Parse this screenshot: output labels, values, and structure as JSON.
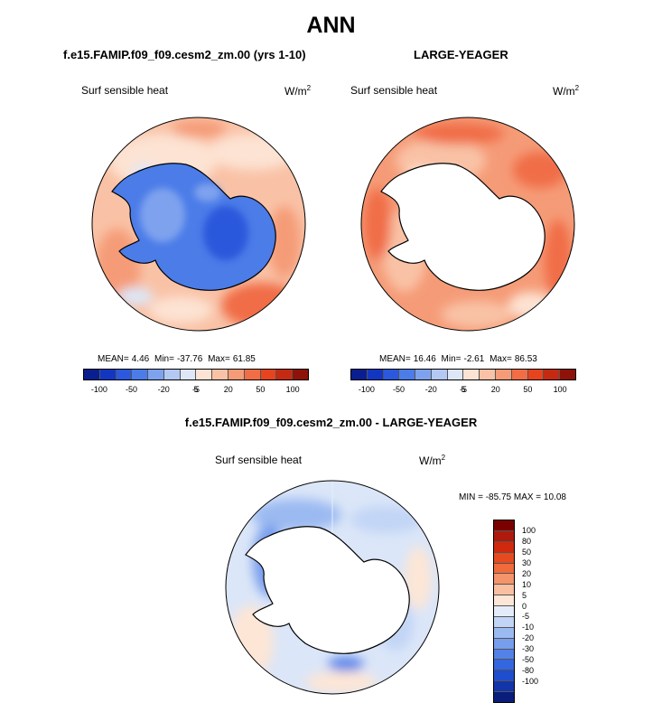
{
  "title": "ANN",
  "panels": [
    {
      "case": "f.e15.FAMIP.f09_f09.cesm2_zm.00 (yrs 1-10)",
      "variable": "Surf sensible heat",
      "units": "W/m",
      "units_exp": "2",
      "stats": {
        "mean_label": "MEAN=",
        "mean": "4.46",
        "min_label": "Min=",
        "min": "-37.76",
        "max_label": "Max=",
        "max": "61.85"
      }
    },
    {
      "case": "LARGE-YEAGER",
      "variable": "Surf sensible heat",
      "units": "W/m",
      "units_exp": "2",
      "stats": {
        "mean_label": "MEAN=",
        "mean": "16.46",
        "min_label": "Min=",
        "min": "-2.61",
        "max_label": "Max=",
        "max": "86.53"
      }
    }
  ],
  "difference": {
    "case": "f.e15.FAMIP.f09_f09.cesm2_zm.00 - LARGE-YEAGER",
    "variable": "Surf sensible heat",
    "units": "W/m",
    "units_exp": "2",
    "minmax": "MIN = -85.75 MAX =  10.08"
  },
  "colorbar_main": {
    "colors": [
      "#0a1f8f",
      "#1336c0",
      "#2b58dc",
      "#4b7ce8",
      "#7ea2ee",
      "#b3c8f3",
      "#dde7f8",
      "#fde3d3",
      "#f9c2a6",
      "#f59b77",
      "#f06d46",
      "#e5441f",
      "#c42a12",
      "#8e1207"
    ],
    "tick_labels": [
      "-100",
      "-50",
      "-20",
      "-5",
      "5",
      "20",
      "50",
      "100"
    ]
  },
  "colorbar_diff": {
    "colors": [
      "#7a0000",
      "#b01a0c",
      "#d0290e",
      "#e64a1f",
      "#f06a3c",
      "#f5936a",
      "#f9bfa0",
      "#fde6d6",
      "#e4ecfa",
      "#c2d5f6",
      "#9bbaf1",
      "#779ded",
      "#5381e8",
      "#3466df",
      "#1e4ecf",
      "#1236aa",
      "#0a1d7a"
    ],
    "tick_labels": [
      "100",
      "80",
      "50",
      "30",
      "20",
      "10",
      "5",
      "0",
      "-5",
      "-10",
      "-20",
      "-30",
      "-50",
      "-80",
      "-100"
    ]
  }
}
